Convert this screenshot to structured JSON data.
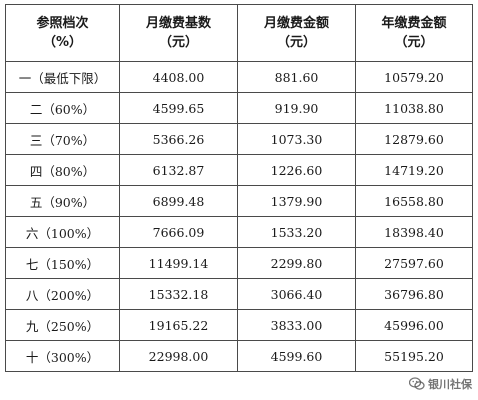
{
  "table": {
    "headers": [
      {
        "line1": "参照档次",
        "line2": "（%）"
      },
      {
        "line1": "月缴费基数",
        "line2": "（元）"
      },
      {
        "line1": "月缴费金额",
        "line2": "（元）"
      },
      {
        "line1": "年缴费金额",
        "line2": "（元）"
      }
    ],
    "rows": [
      [
        "一（最低下限）",
        "4408.00",
        "881.60",
        "10579.20"
      ],
      [
        "二（60%）",
        "4599.65",
        "919.90",
        "11038.80"
      ],
      [
        "三（70%）",
        "5366.26",
        "1073.30",
        "12879.60"
      ],
      [
        "四（80%）",
        "6132.87",
        "1226.60",
        "14719.20"
      ],
      [
        "五（90%）",
        "6899.48",
        "1379.90",
        "16558.80"
      ],
      [
        "六（100%）",
        "7666.09",
        "1533.20",
        "18398.40"
      ],
      [
        "七（150%）",
        "11499.14",
        "2299.80",
        "27597.60"
      ],
      [
        "八（200%）",
        "15332.18",
        "3066.40",
        "36796.80"
      ],
      [
        "九（250%）",
        "19165.22",
        "3833.00",
        "45996.00"
      ],
      [
        "十（300%）",
        "22998.00",
        "4599.60",
        "55195.20"
      ]
    ]
  },
  "watermark": {
    "text": "银川社保",
    "icon": "wechat-logo-icon"
  }
}
